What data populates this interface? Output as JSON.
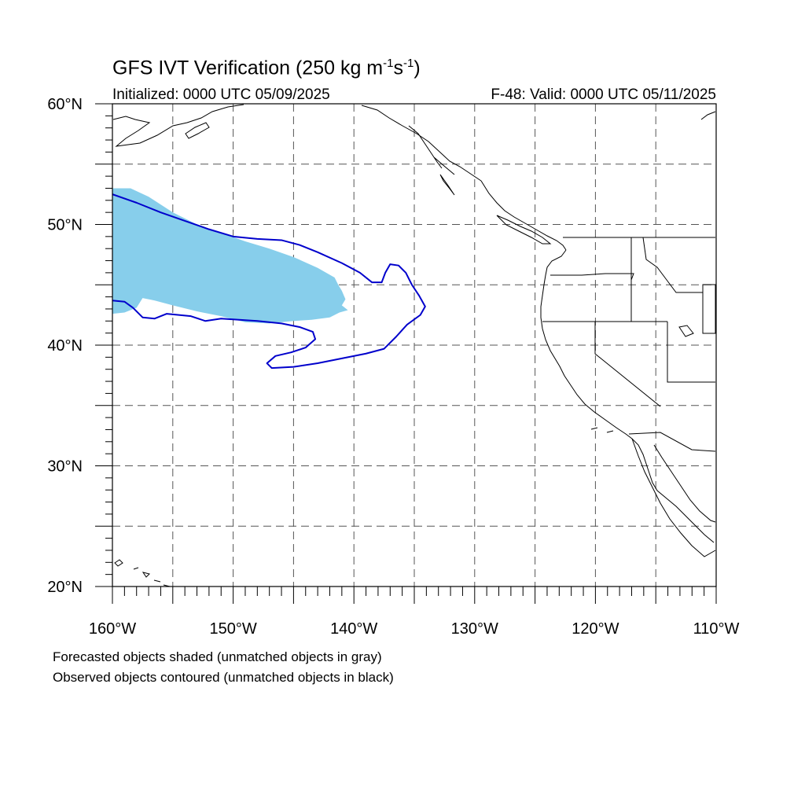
{
  "title": {
    "main": "GFS IVT Verification (250 kg m",
    "exp1": "-1",
    "mid": "s",
    "exp2": "-1",
    "end": ")"
  },
  "subtitle_left": "Initialized: 0000 UTC 05/09/2025",
  "subtitle_right": "F-48: Valid: 0000 UTC 05/11/2025",
  "axes": {
    "lon_range": [
      -160,
      -110
    ],
    "lat_range": [
      20,
      60
    ],
    "lon_ticks": [
      {
        "value": -160,
        "label": "160°W"
      },
      {
        "value": -150,
        "label": "150°W"
      },
      {
        "value": -140,
        "label": "140°W"
      },
      {
        "value": -130,
        "label": "130°W"
      },
      {
        "value": -120,
        "label": "120°W"
      },
      {
        "value": -110,
        "label": "110°W"
      }
    ],
    "lat_ticks": [
      {
        "value": 20,
        "label": "20°N"
      },
      {
        "value": 30,
        "label": "30°N"
      },
      {
        "value": 40,
        "label": "40°N"
      },
      {
        "value": 50,
        "label": "50°N"
      },
      {
        "value": 60,
        "label": "60°N"
      }
    ],
    "grid_interval_deg": 5,
    "grid_style": "dashed"
  },
  "colors": {
    "forecast_fill": "#87ceeb",
    "observed_contour": "#0000cc",
    "coastline": "#000000",
    "grid": "#555555"
  },
  "forecast_object": {
    "lonlat": [
      [
        -160,
        53.0
      ],
      [
        -158.5,
        53.0
      ],
      [
        -157,
        52.3
      ],
      [
        -155,
        51.0
      ],
      [
        -153,
        50.0
      ],
      [
        -151,
        49.3
      ],
      [
        -149,
        48.6
      ],
      [
        -147,
        48.0
      ],
      [
        -145,
        47.3
      ],
      [
        -143,
        46.4
      ],
      [
        -141.6,
        45.6
      ],
      [
        -141.3,
        45.0
      ],
      [
        -141,
        44.5
      ],
      [
        -140.7,
        43.8
      ],
      [
        -141,
        43.3
      ],
      [
        -140.5,
        42.9
      ],
      [
        -141.2,
        42.7
      ],
      [
        -142,
        42.3
      ],
      [
        -143.5,
        42.1
      ],
      [
        -145,
        42.0
      ],
      [
        -147,
        41.8
      ],
      [
        -149,
        41.9
      ],
      [
        -151,
        42.4
      ],
      [
        -153,
        42.8
      ],
      [
        -155,
        43.3
      ],
      [
        -156.5,
        43.7
      ],
      [
        -157.5,
        43.9
      ],
      [
        -158,
        43.1
      ],
      [
        -159,
        42.7
      ],
      [
        -160,
        42.6
      ]
    ]
  },
  "observed_object": {
    "lonlat": [
      [
        -160,
        52.5
      ],
      [
        -158,
        51.8
      ],
      [
        -156,
        51.0
      ],
      [
        -154,
        50.3
      ],
      [
        -152,
        49.6
      ],
      [
        -150,
        49.0
      ],
      [
        -148,
        48.8
      ],
      [
        -146,
        48.7
      ],
      [
        -144.5,
        48.3
      ],
      [
        -143,
        47.7
      ],
      [
        -141,
        46.8
      ],
      [
        -139.5,
        46.0
      ],
      [
        -138.5,
        45.2
      ],
      [
        -137.7,
        45.2
      ],
      [
        -137.4,
        46.0
      ],
      [
        -137.0,
        46.7
      ],
      [
        -136.3,
        46.6
      ],
      [
        -135.7,
        46.0
      ],
      [
        -135.2,
        45.0
      ],
      [
        -134.6,
        44.1
      ],
      [
        -134.1,
        43.2
      ],
      [
        -134.5,
        42.5
      ],
      [
        -135.6,
        41.7
      ],
      [
        -136.5,
        40.7
      ],
      [
        -137.5,
        39.7
      ],
      [
        -139,
        39.3
      ],
      [
        -141,
        38.9
      ],
      [
        -143,
        38.5
      ],
      [
        -145,
        38.2
      ],
      [
        -146.8,
        38.1
      ],
      [
        -147.2,
        38.5
      ],
      [
        -146.5,
        39.1
      ],
      [
        -145.2,
        39.4
      ],
      [
        -144,
        39.8
      ],
      [
        -143.2,
        40.5
      ],
      [
        -143.4,
        41.1
      ],
      [
        -144.5,
        41.5
      ],
      [
        -146,
        41.8
      ],
      [
        -148,
        42.0
      ],
      [
        -149.5,
        42.1
      ],
      [
        -151,
        42.2
      ],
      [
        -152.3,
        42.0
      ],
      [
        -153.5,
        42.4
      ],
      [
        -154.5,
        42.5
      ],
      [
        -155.5,
        42.6
      ],
      [
        -156.5,
        42.2
      ],
      [
        -157.5,
        42.3
      ],
      [
        -158.3,
        43.1
      ],
      [
        -159,
        43.6
      ],
      [
        -160,
        43.7
      ]
    ]
  },
  "footnotes": {
    "forecast": "Forecasted objects shaded (unmatched objects in gray)",
    "observed": "Observed objects contoured (unmatched objects in black)"
  }
}
